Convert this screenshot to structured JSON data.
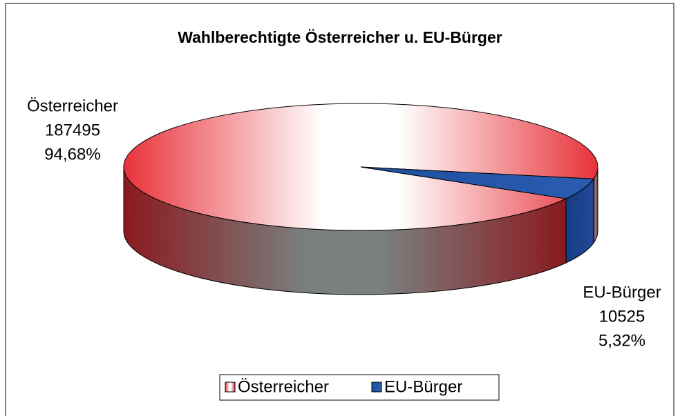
{
  "chart_data": {
    "type": "pie3d",
    "title": "Wahlberechtigte Österreicher u. EU-Bürger",
    "categories": [
      "Österreicher",
      "EU-Bürger"
    ],
    "values": [
      94.68,
      5.32
    ],
    "value_labels": [
      "94,68%",
      "5,32%"
    ],
    "counts": [
      "187495",
      "10525"
    ],
    "colors": [
      "#e8323a",
      "#1f4fa0"
    ],
    "legend": "bottom"
  }
}
